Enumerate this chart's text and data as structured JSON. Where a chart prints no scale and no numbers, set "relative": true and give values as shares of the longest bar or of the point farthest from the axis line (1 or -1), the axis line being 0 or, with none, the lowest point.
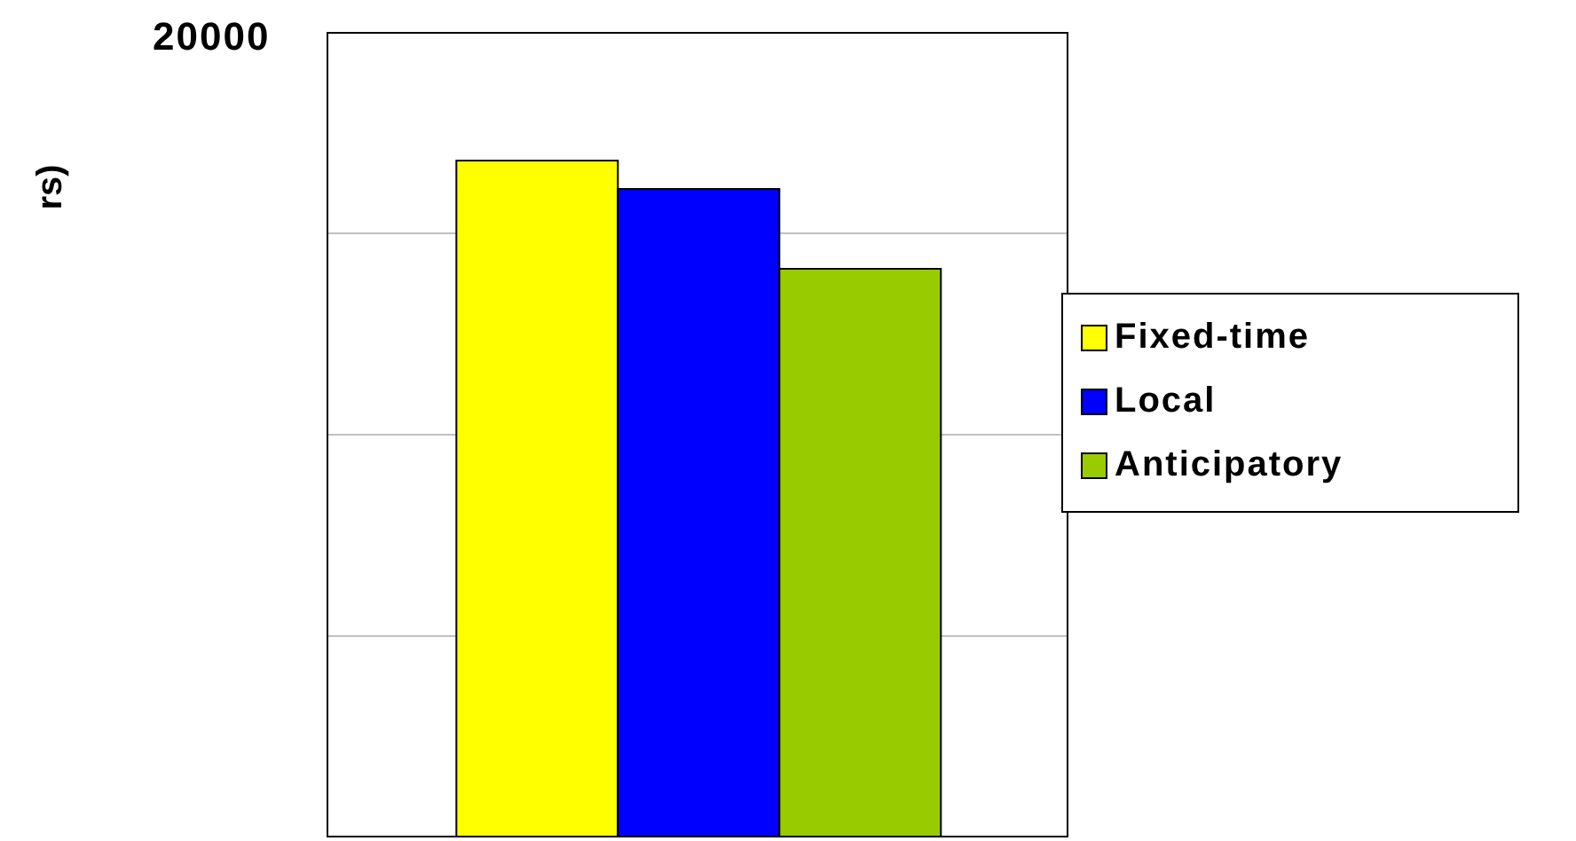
{
  "chart_data": {
    "type": "bar",
    "relative": true,
    "annotations": [
      "20000",
      "rs)"
    ],
    "categories": [
      null
    ],
    "series": [
      {
        "name": "Fixed-time",
        "color": "#ffff00",
        "values": [
          1
        ]
      },
      {
        "name": "Local",
        "color": "#0000ff",
        "values": [
          0.958
        ]
      },
      {
        "name": "Anticipatory",
        "color": "#99cc00",
        "values": [
          0.84
        ]
      }
    ],
    "grid": "y",
    "legend": "right"
  }
}
